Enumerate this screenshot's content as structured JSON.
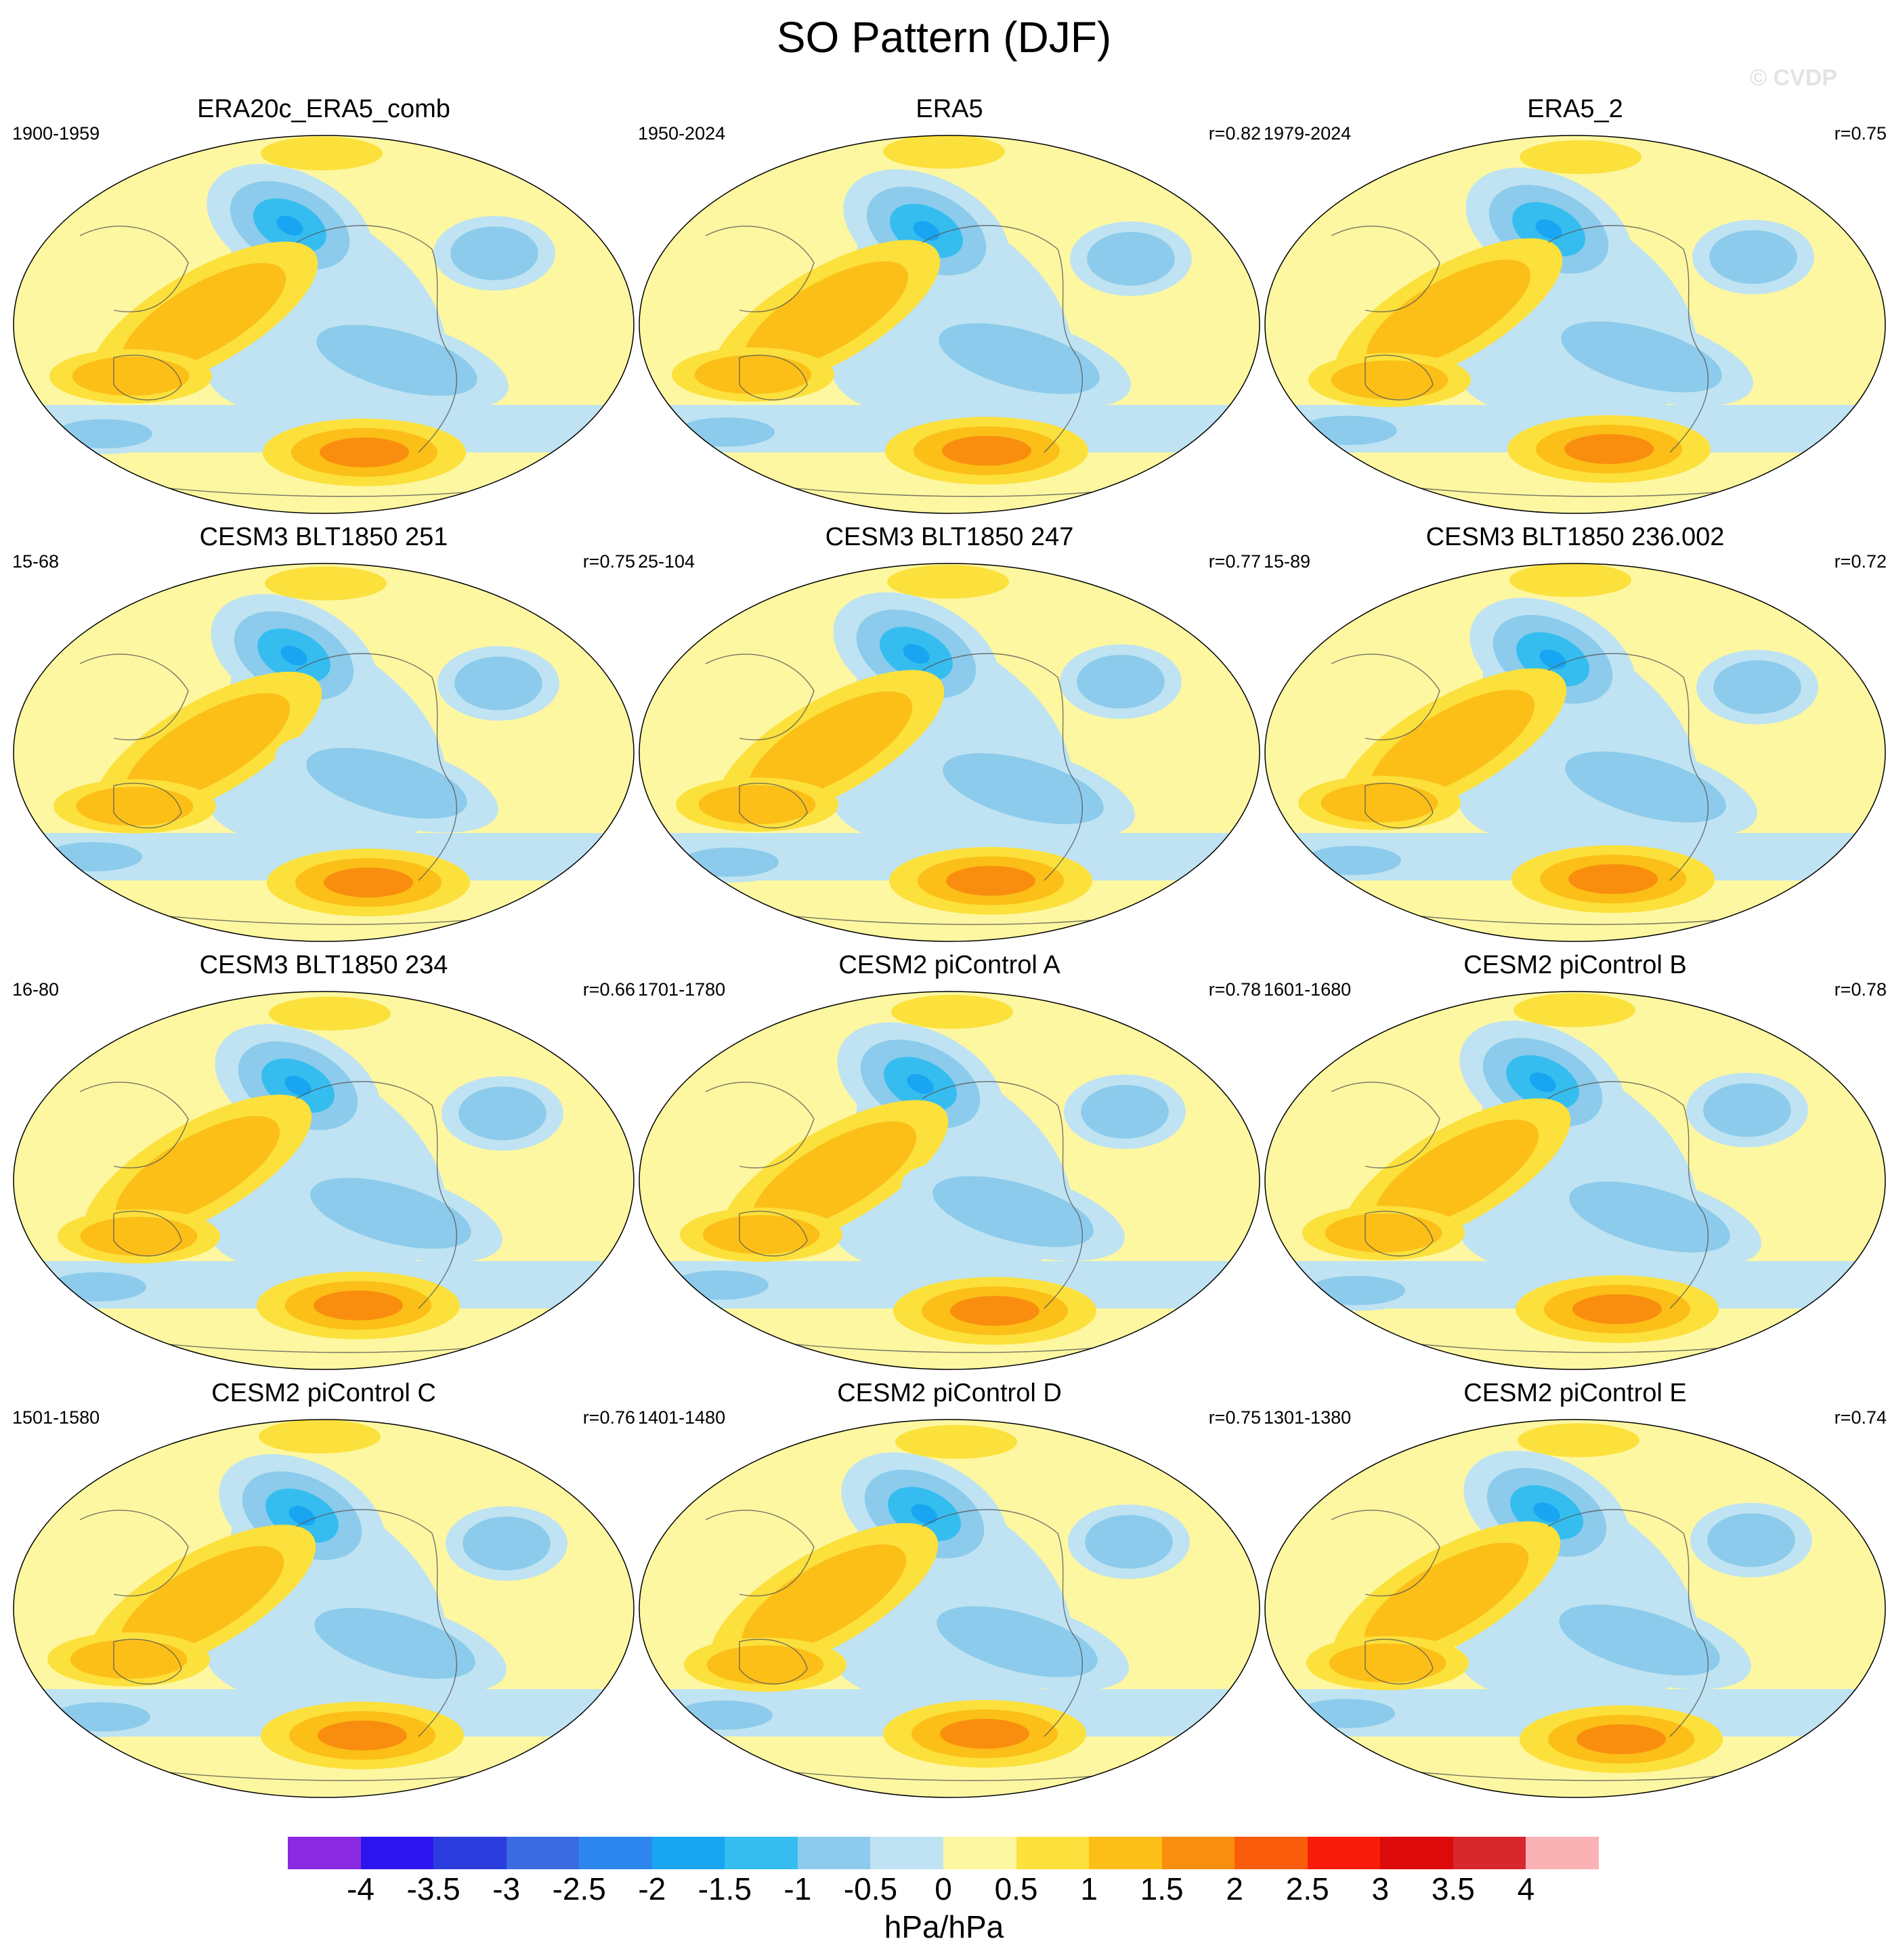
{
  "title": "SO Pattern (DJF)",
  "copyright": "© CVDP",
  "units": "hPa/hPa",
  "chart_data": {
    "type": "contour-map-panels",
    "variable": "SO Pattern (DJF)",
    "units": "hPa/hPa",
    "projection": "robinson-global",
    "colorbar": {
      "levels": [
        -4,
        -3.5,
        -3,
        -2.5,
        -2,
        -1.5,
        -1,
        -0.5,
        0,
        0.5,
        1,
        1.5,
        2,
        2.5,
        3,
        3.5,
        4
      ],
      "tick_labels": [
        "-4",
        "-3.5",
        "-3",
        "-2.5",
        "-2",
        "-1.5",
        "-1",
        "-0.5",
        "0",
        "0.5",
        "1",
        "1.5",
        "2",
        "2.5",
        "3",
        "3.5",
        "4"
      ],
      "colors": [
        "#8a2be2",
        "#2e14f0",
        "#2a3ddc",
        "#3a6be0",
        "#2c86ee",
        "#18a6f2",
        "#35bdf0",
        "#8ccbeb",
        "#bfe3f2",
        "#fdf7a1",
        "#fce03c",
        "#fbbf18",
        "#f98e0e",
        "#f95c0a",
        "#f91b0a",
        "#dc0a0a",
        "#d7282e",
        "#fbb2b5"
      ]
    },
    "panels": [
      {
        "title": "ERA20c_ERA5_comb",
        "period": "1900-1959",
        "r": ""
      },
      {
        "title": "ERA5",
        "period": "1950-2024",
        "r": "r=0.82"
      },
      {
        "title": "ERA5_2",
        "period": "1979-2024",
        "r": "r=0.75"
      },
      {
        "title": "CESM3 BLT1850 251",
        "period": "15-68",
        "r": "r=0.75"
      },
      {
        "title": "CESM3 BLT1850 247",
        "period": "25-104",
        "r": "r=0.77"
      },
      {
        "title": "CESM3 BLT1850 236.002",
        "period": "15-89",
        "r": "r=0.72"
      },
      {
        "title": "CESM3 BLT1850 234",
        "period": "16-80",
        "r": "r=0.66"
      },
      {
        "title": "CESM2 piControl A",
        "period": "1701-1780",
        "r": "r=0.78"
      },
      {
        "title": "CESM2 piControl B",
        "period": "1601-1680",
        "r": "r=0.78"
      },
      {
        "title": "CESM2 piControl C",
        "period": "1501-1580",
        "r": "r=0.76"
      },
      {
        "title": "CESM2 piControl D",
        "period": "1401-1480",
        "r": "r=0.75"
      },
      {
        "title": "CESM2 piControl E",
        "period": "1301-1380",
        "r": "r=0.74"
      }
    ]
  }
}
